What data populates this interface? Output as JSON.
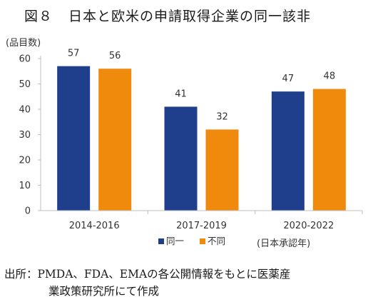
{
  "figure": {
    "number": "図８",
    "title": "日本と欧米の申請取得企業の同一該非"
  },
  "colors": {
    "series1": "#1f3f8c",
    "series2": "#f08a0c",
    "axis": "#bfbfbf",
    "text": "#333333"
  },
  "chart_data": {
    "type": "bar",
    "categories": [
      "2014-2016",
      "2017-2019",
      "2020-2022"
    ],
    "series": [
      {
        "name": "同一",
        "values": [
          57,
          41,
          47
        ],
        "color": "#1f3f8c"
      },
      {
        "name": "不同",
        "values": [
          56,
          32,
          48
        ],
        "color": "#f08a0c"
      }
    ],
    "ylabel": "(品目数)",
    "xlabel": "(日本承認年)",
    "ylim": [
      0,
      60
    ],
    "yticks": [
      0,
      10,
      20,
      30,
      40,
      50,
      60
    ],
    "grid": false,
    "legend_position": "bottom"
  },
  "source": {
    "line1": "出所：PMDA、FDA、EMAの各公開情報をもとに医薬産",
    "line2": "業政策研究所にて作成"
  }
}
